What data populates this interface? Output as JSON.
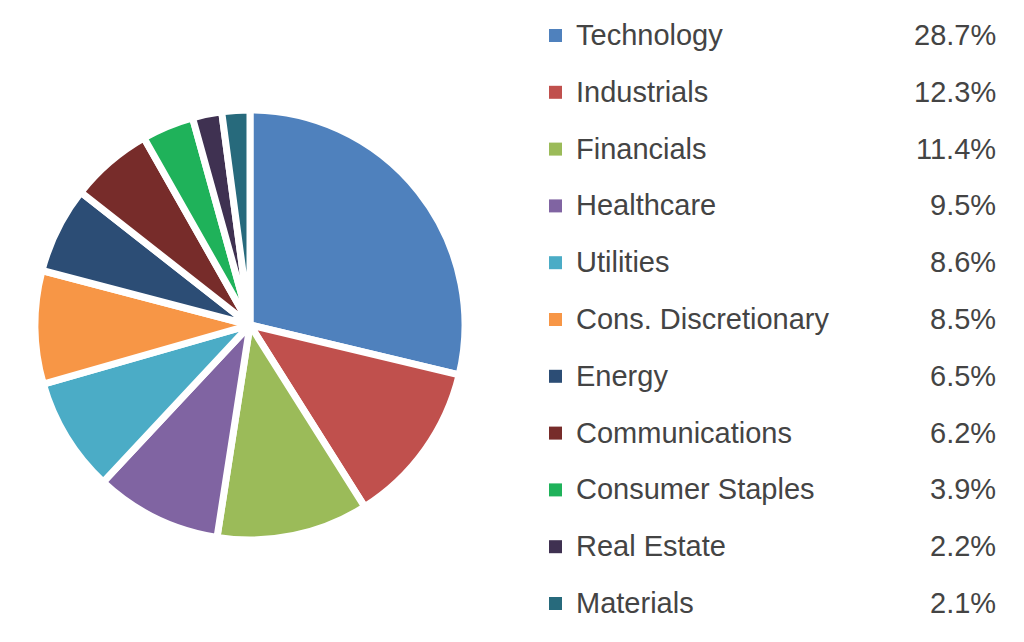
{
  "chart_data": {
    "type": "pie",
    "categories": [
      "Technology",
      "Industrials",
      "Financials",
      "Healthcare",
      "Utilities",
      "Cons. Discretionary",
      "Energy",
      "Communications",
      "Consumer Staples",
      "Real Estate",
      "Materials"
    ],
    "values": [
      28.7,
      12.3,
      11.4,
      9.5,
      8.6,
      8.5,
      6.5,
      6.2,
      3.9,
      2.2,
      2.1
    ],
    "value_labels": [
      "28.7%",
      "12.3%",
      "11.4%",
      "9.5%",
      "8.6%",
      "8.5%",
      "6.5%",
      "6.2%",
      "3.9%",
      "2.2%",
      "2.1%"
    ],
    "colors": [
      "#4f81bd",
      "#c0504d",
      "#9bbb59",
      "#8064a2",
      "#4bacc6",
      "#f79646",
      "#2c4d75",
      "#772c2a",
      "#1fb25a",
      "#3f3151",
      "#276a7c"
    ],
    "legend": "right"
  }
}
